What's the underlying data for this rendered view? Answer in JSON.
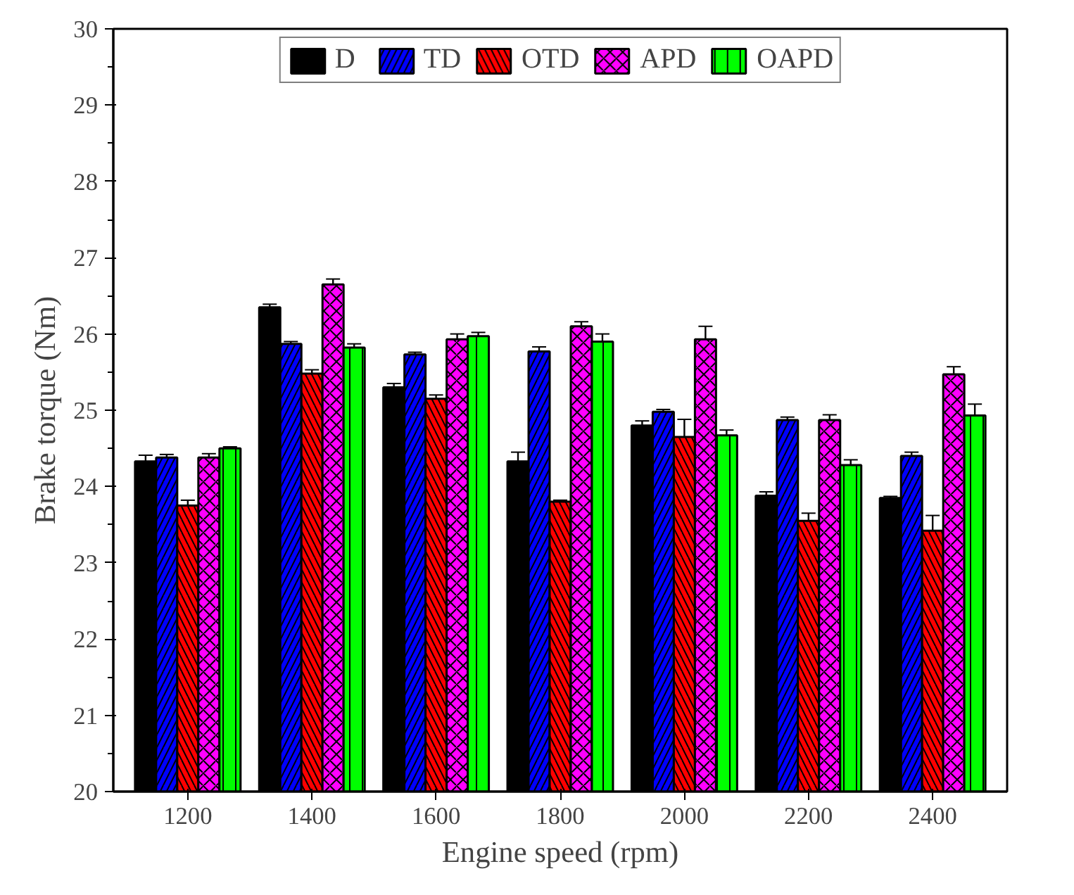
{
  "chart_data": {
    "type": "bar",
    "xlabel": "Engine speed (rpm)",
    "ylabel": "Brake torque (Nm)",
    "categories": [
      "1200",
      "1400",
      "1600",
      "1800",
      "2000",
      "2200",
      "2400"
    ],
    "ylim": [
      20,
      30
    ],
    "yticks": [
      20,
      21,
      22,
      23,
      24,
      25,
      26,
      27,
      28,
      29,
      30
    ],
    "legend": "top",
    "grid": false,
    "series": [
      {
        "name": "D",
        "color": "#000000",
        "values": [
          24.33,
          26.35,
          25.3,
          24.33,
          24.8,
          23.88,
          23.85
        ],
        "errors": [
          0.08,
          0.04,
          0.05,
          0.12,
          0.06,
          0.05,
          0.02
        ]
      },
      {
        "name": "TD",
        "color": "#0000ff",
        "values": [
          24.38,
          25.87,
          25.73,
          25.77,
          24.98,
          24.87,
          24.4
        ],
        "errors": [
          0.04,
          0.03,
          0.03,
          0.06,
          0.03,
          0.04,
          0.05
        ]
      },
      {
        "name": "OTD",
        "color": "#ff0000",
        "values": [
          23.75,
          25.48,
          25.15,
          23.8,
          24.65,
          23.55,
          23.42
        ],
        "errors": [
          0.07,
          0.05,
          0.05,
          0.02,
          0.23,
          0.1,
          0.2
        ]
      },
      {
        "name": "APD",
        "color": "#ff00ff",
        "values": [
          24.38,
          26.65,
          25.93,
          26.1,
          25.93,
          24.87,
          25.47
        ],
        "errors": [
          0.05,
          0.07,
          0.07,
          0.06,
          0.17,
          0.07,
          0.1
        ]
      },
      {
        "name": "OAPD",
        "color": "#00ff00",
        "values": [
          24.5,
          25.82,
          25.97,
          25.9,
          24.67,
          24.28,
          24.93
        ],
        "errors": [
          0.02,
          0.05,
          0.05,
          0.1,
          0.07,
          0.07,
          0.15
        ]
      }
    ]
  }
}
